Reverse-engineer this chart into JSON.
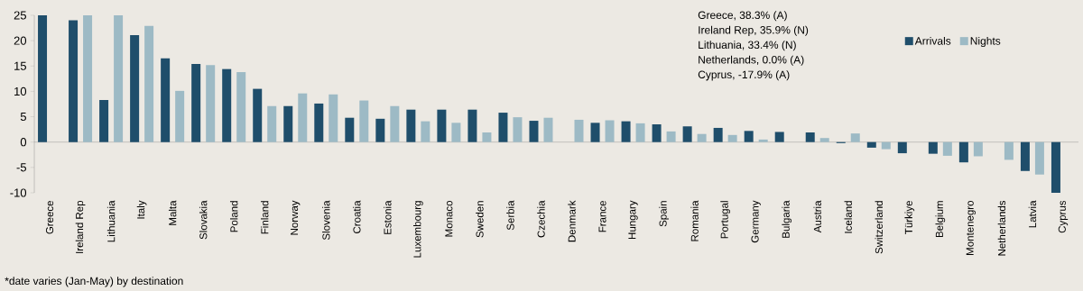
{
  "chart_data": {
    "type": "bar",
    "categories": [
      "Greece",
      "Ireland Rep",
      "Lithuania",
      "Italy",
      "Malta",
      "Slovakia",
      "Poland",
      "Finland",
      "Norway",
      "Slovenia",
      "Croatia",
      "Estonia",
      "Luxembourg",
      "Monaco",
      "Sweden",
      "Serbia",
      "Czechia",
      "Denmark",
      "France",
      "Hungary",
      "Spain",
      "Romania",
      "Portugal",
      "Germany",
      "Bulgaria",
      "Austria",
      "Iceland",
      "Switzerland",
      "Türkiye",
      "Belgium",
      "Montenegro",
      "Netherlands",
      "Latvia",
      "Cyprus"
    ],
    "series": [
      {
        "name": "Arrivals",
        "color": "#1f4e6b",
        "values": [
          25,
          24.0,
          8.3,
          21.1,
          16.5,
          15.4,
          14.4,
          10.5,
          7.1,
          7.6,
          4.8,
          4.6,
          6.4,
          6.4,
          6.4,
          5.8,
          4.2,
          null,
          3.8,
          4.1,
          3.5,
          3.1,
          2.8,
          2.2,
          2.0,
          1.9,
          -0.2,
          -1.1,
          -2.2,
          -2.3,
          -4.0,
          0.0,
          -5.7,
          -10
        ]
      },
      {
        "name": "Nights",
        "color": "#9dbac5",
        "values": [
          0,
          25,
          25,
          22.9,
          10.1,
          15.2,
          13.8,
          7.1,
          9.6,
          9.4,
          8.2,
          7.1,
          4.1,
          3.8,
          1.9,
          4.9,
          4.8,
          4.4,
          4.3,
          3.7,
          2.1,
          1.6,
          1.4,
          0.5,
          null,
          0.8,
          1.7,
          -1.4,
          null,
          -2.7,
          -2.8,
          -3.5,
          -6.4,
          null
        ]
      }
    ],
    "ylim": [
      -10,
      25
    ],
    "yticks": [
      -10,
      -5,
      0,
      5,
      10,
      15,
      20,
      25
    ],
    "legend": "top right",
    "annotations": [
      "Greece, 38.3% (A)",
      "Ireland Rep,  35.9% (N)",
      "Lithuania, 33.4% (N)",
      "Netherlands, 0.0% (A)",
      "Cyprus, -17.9% (A)",
      "*date varies (Jan-May) by destination"
    ]
  }
}
